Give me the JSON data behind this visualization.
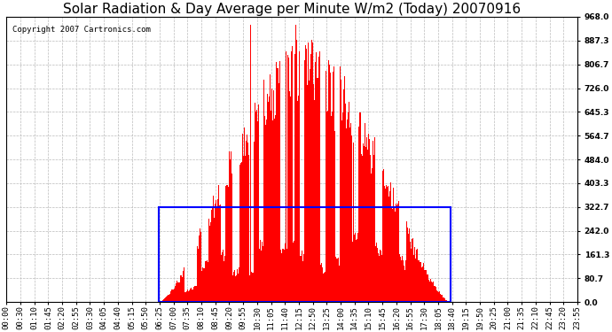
{
  "title": "Solar Radiation & Day Average per Minute W/m2 (Today) 20070916",
  "copyright": "Copyright 2007 Cartronics.com",
  "background_color": "#ffffff",
  "plot_bg_color": "#ffffff",
  "y_ticks": [
    0.0,
    80.7,
    161.3,
    242.0,
    322.7,
    403.3,
    484.0,
    564.7,
    645.3,
    726.0,
    806.7,
    887.3,
    968.0
  ],
  "ylim": [
    0,
    968.0
  ],
  "bar_color": "#ff0000",
  "avg_rect_color": "#0000ff",
  "avg_value": 322.7,
  "x_labels": [
    "00:00",
    "00:30",
    "01:10",
    "01:45",
    "02:20",
    "02:55",
    "03:30",
    "04:05",
    "04:40",
    "05:15",
    "05:50",
    "06:25",
    "07:00",
    "07:35",
    "08:10",
    "08:45",
    "09:20",
    "09:55",
    "10:30",
    "11:05",
    "11:40",
    "12:15",
    "12:50",
    "13:25",
    "14:00",
    "14:35",
    "15:10",
    "15:45",
    "16:20",
    "16:55",
    "17:30",
    "18:05",
    "18:40",
    "19:15",
    "19:50",
    "20:25",
    "21:00",
    "21:35",
    "22:10",
    "22:45",
    "23:20",
    "23:55"
  ],
  "sunrise_hour": 6.417,
  "sunset_hour": 18.667,
  "grid_color": "#bbbbbb",
  "title_fontsize": 11,
  "axis_label_fontsize": 6.5,
  "copyright_fontsize": 6.5,
  "figwidth": 6.9,
  "figheight": 3.75,
  "dpi": 100
}
